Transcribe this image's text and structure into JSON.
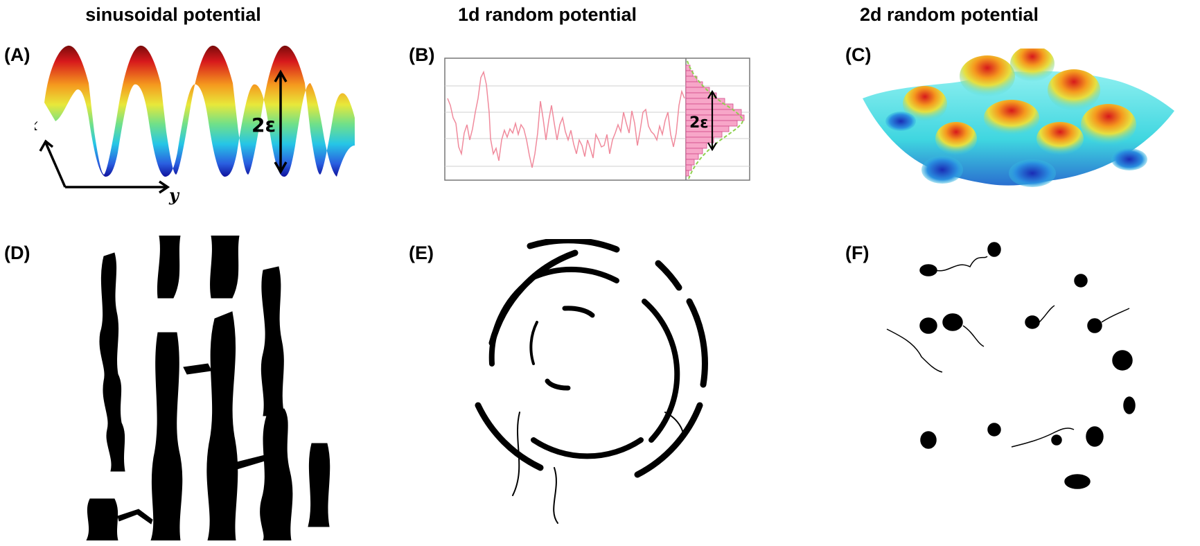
{
  "columns": {
    "sinusoidal": "sinusoidal potential",
    "random_1d": "1d random potential",
    "random_2d": "2d random potential"
  },
  "panels": {
    "a": "(A)",
    "b": "(B)",
    "c": "(C)",
    "d": "(D)",
    "e": "(E)",
    "f": "(F)"
  },
  "annotations": {
    "x_axis": "x",
    "y_axis": "y",
    "amplitude_a": "2ε",
    "amplitude_b": "2ε"
  },
  "colors": {
    "trace": "#000000",
    "signal_line": "#f08a9c",
    "histogram_fill": "#f7a6c8",
    "gaussian_fit": "#8fd14f",
    "surface_high": "#d7191c",
    "surface_low": "#1a2cb5",
    "surface_mid": "#3fd6e0"
  }
}
